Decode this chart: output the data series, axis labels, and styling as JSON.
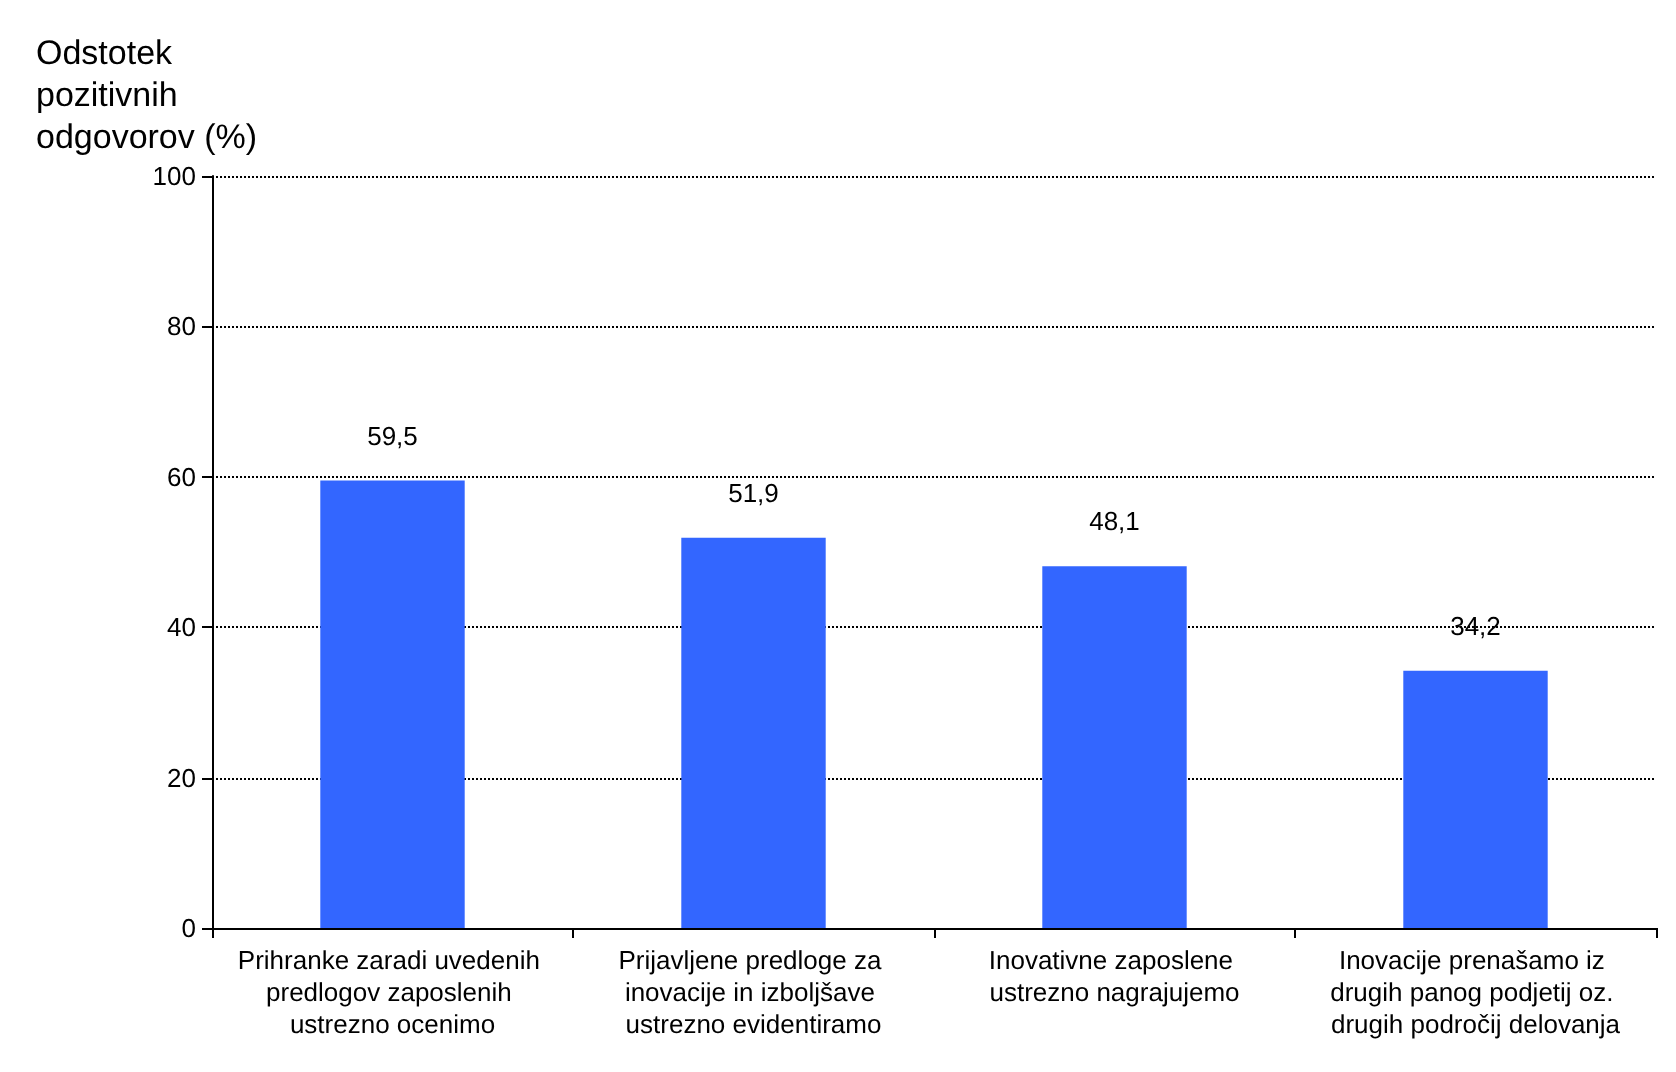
{
  "chart_data": {
    "type": "bar",
    "ylabel": "Odstotek pozitivnih odgovorov (%)",
    "categories": [
      "Prihranke zaradi uvedenih predlogov zaposlenih ustrezno ocenimo",
      "Prijavljene predloge za inovacije in izboljšave ustrezno evidentiramo",
      "Inovativne zaposlene ustrezno nagrajujemo",
      "Inovacije prenašamo iz drugih panog podjetij oz. drugih področij delovanja"
    ],
    "values": [
      59.5,
      51.9,
      48.1,
      34.2
    ],
    "value_labels": [
      "59,5",
      "51,9",
      "48,1",
      "34,2"
    ],
    "color": "#3366ff",
    "ylim": [
      0,
      100
    ],
    "yticks": [
      0,
      20,
      40,
      60,
      80,
      100
    ],
    "grid": "y"
  }
}
